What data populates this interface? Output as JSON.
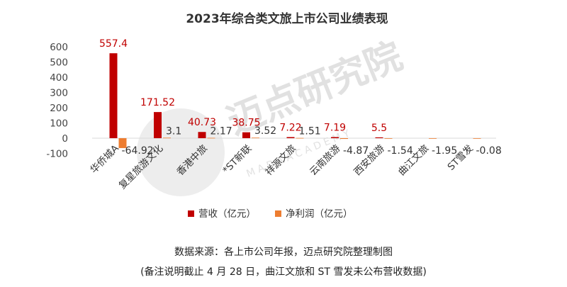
{
  "chart_data": {
    "type": "bar",
    "title": "2023年综合类文旅上市公司业绩表现",
    "categories": [
      "华侨城A",
      "复星旅游文化",
      "香港中旅",
      "*ST新联",
      "祥源文旅",
      "云南旅游",
      "西安旅游",
      "曲江文旅",
      "ST雪发"
    ],
    "series": [
      {
        "name": "营收（亿元）",
        "color": "#c00000",
        "values": [
          557.4,
          171.52,
          40.73,
          38.75,
          7.22,
          7.19,
          5.5,
          null,
          null
        ],
        "labels": [
          "557.4",
          "171.52",
          "40.73",
          "38.75",
          "7.22",
          "7.19",
          "5.5",
          "",
          ""
        ]
      },
      {
        "name": "净利润（亿元）",
        "color": "#ed7d31",
        "values": [
          -64.92,
          3.1,
          2.17,
          3.52,
          1.51,
          -4.87,
          -1.54,
          -1.95,
          -0.08
        ],
        "labels": [
          "-64.92",
          "3.1",
          "2.17",
          "3.52",
          "1.51",
          "-4.87",
          "-1.54",
          "-1.95",
          "-0.08"
        ]
      }
    ],
    "yticks": [
      600,
      500,
      400,
      300,
      200,
      100,
      0,
      -100
    ],
    "ylim": [
      -100,
      600
    ],
    "grid": false,
    "legend": "bottom"
  },
  "notes": {
    "source": "数据来源：各上市公司年报，迈点研究院整理制图",
    "remark": "(备注说明截止 4 月 28 日，曲江文旅和 ST 雪发未公布营收数据)"
  },
  "watermark": {
    "text": "迈点研究院",
    "sub": "M A D A   A C A D E M Y"
  }
}
